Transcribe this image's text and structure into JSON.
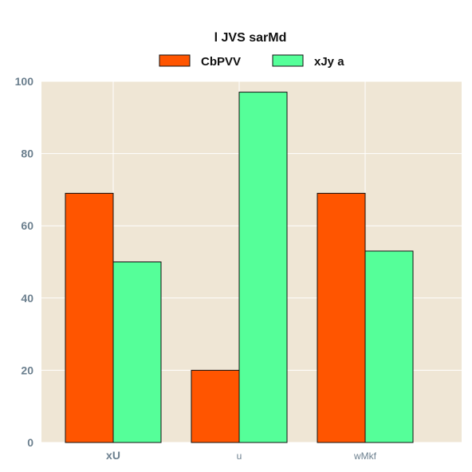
{
  "chart_data": {
    "type": "bar",
    "title": "l JVS sarMd",
    "categories": [
      "xU",
      "u",
      "wMkf"
    ],
    "series": [
      {
        "name": "CbPVV",
        "values": [
          69,
          20,
          69
        ],
        "color": "#ff5500"
      },
      {
        "name": "xJy a",
        "values": [
          50,
          97,
          53
        ],
        "color": "#55ff99"
      }
    ],
    "xlabel": "",
    "ylabel": "",
    "ylim": [
      0,
      100
    ],
    "yticks": [
      0,
      20,
      40,
      60,
      80,
      100
    ],
    "grid": true,
    "legend_position": "top-center",
    "plot_background": "#efe6d5",
    "axis_text_color": "#6b7f8e"
  }
}
